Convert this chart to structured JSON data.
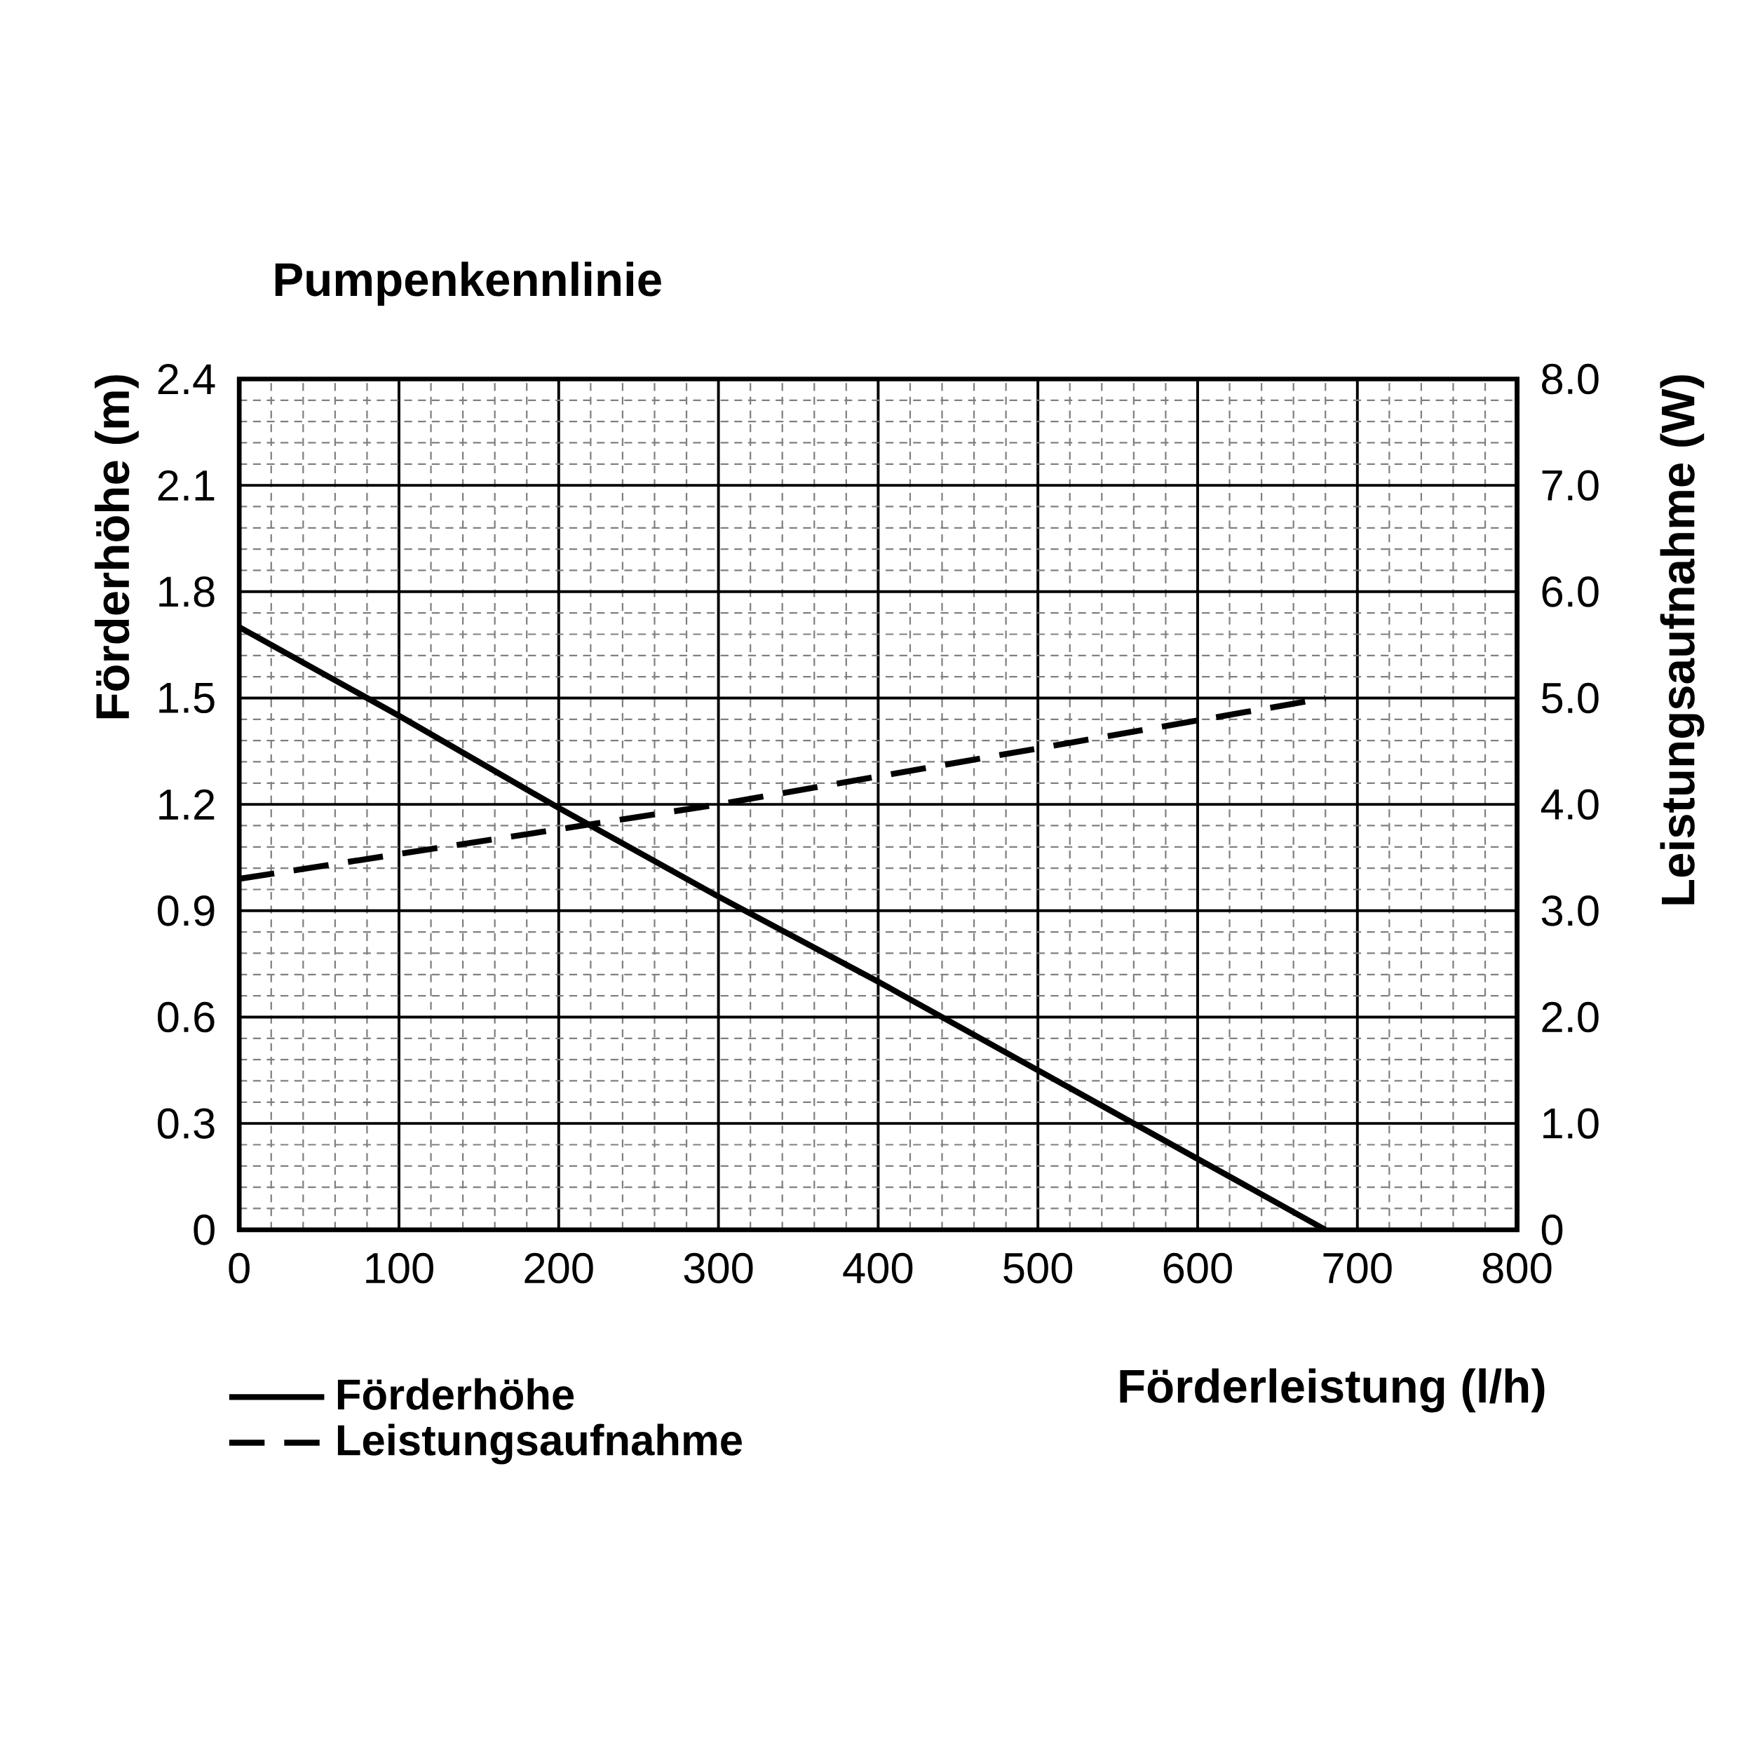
{
  "chart_data": {
    "type": "line",
    "title": "Pumpenkennlinie",
    "xlabel": "Förderleistung (l/h)",
    "ylabel": "Förderhöhe (m)",
    "y2label": "Leistungsaufnahme (W)",
    "series": [
      {
        "name": "Förderhöhe",
        "color": "#000000",
        "line_style": "solid",
        "x": [
          0,
          100,
          200,
          300,
          400,
          500,
          600,
          680
        ],
        "values": [
          1.7,
          1.45,
          1.19,
          0.94,
          0.7,
          0.45,
          0.2,
          0
        ]
      },
      {
        "name": "Leistungsaufnahme",
        "color": "#000000",
        "line_style": "dashed",
        "axis": "y2",
        "x": [
          0,
          300,
          680
        ],
        "values": [
          3.3,
          4.0,
          5.0
        ]
      }
    ],
    "xlim": [
      0,
      800
    ],
    "xticks": [
      0,
      100,
      200,
      300,
      400,
      500,
      600,
      700,
      800
    ],
    "ylim": [
      0,
      2.4
    ],
    "yticks": [
      0,
      0.3,
      0.6,
      0.9,
      1.2,
      1.5,
      1.8,
      2.1,
      2.4
    ],
    "y2lim": [
      0,
      8
    ],
    "y2ticks": [
      0,
      {
        "value": 1,
        "label": "1.0"
      },
      {
        "value": 2,
        "label": "2.0"
      },
      {
        "value": 3,
        "label": "3.0"
      },
      {
        "value": 4,
        "label": "4.0"
      },
      {
        "value": 5,
        "label": "5.0"
      },
      {
        "value": 6,
        "label": "6.0"
      },
      {
        "value": 7,
        "label": "7.0"
      },
      {
        "value": 8,
        "label": "8.0"
      }
    ],
    "grid": true,
    "legend": "bottom left"
  }
}
